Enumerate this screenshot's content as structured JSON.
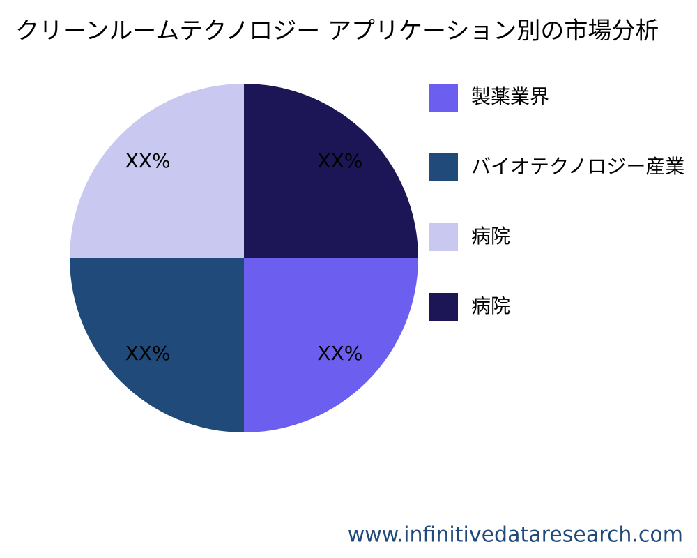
{
  "chart_data": {
    "type": "pie",
    "title": "クリーンルームテクノロジー アプリケーション別の市場分析",
    "categories": [
      "製薬業界",
      "バイオテクノロジー産業",
      "病院",
      "病院"
    ],
    "values": [
      25,
      25,
      25,
      25
    ],
    "value_labels": [
      "XX%",
      "XX%",
      "XX%",
      "XX%"
    ],
    "colors": [
      "#6c5ff0",
      "#1f4a7a",
      "#c8c8f0",
      "#1c1657"
    ],
    "legend": "right",
    "source": "www.infinitivedataresearch.com"
  }
}
